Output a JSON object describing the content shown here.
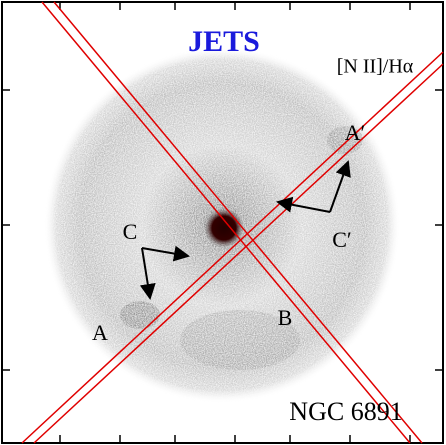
{
  "title": "JETS",
  "line_ratio": "[N II]/Hα",
  "object_name": "NGC 6891",
  "labels": {
    "a_prime": "A′",
    "c_prime": "C′",
    "c": "C",
    "a": "A",
    "b": "B"
  }
}
